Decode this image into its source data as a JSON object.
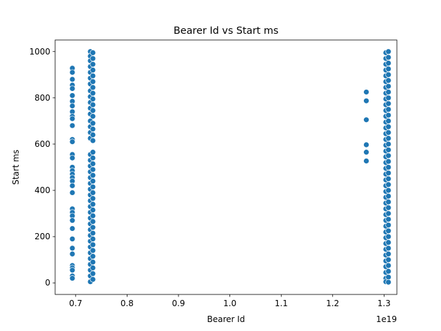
{
  "chart_data": {
    "type": "scatter",
    "title": "Bearer Id vs Start ms",
    "xlabel": "Bearer Id",
    "ylabel": "Start ms",
    "x_offset_text": "1e19",
    "x_scale_exponent": 19,
    "xlim": [
      0.66,
      1.325
    ],
    "ylim": [
      -50,
      1050
    ],
    "x_ticks": [
      0.7,
      0.8,
      0.9,
      1.0,
      1.1,
      1.2,
      1.3
    ],
    "x_tick_labels": [
      "0.7",
      "0.8",
      "0.9",
      "1.0",
      "1.1",
      "1.2",
      "1.3"
    ],
    "y_ticks": [
      0,
      200,
      400,
      600,
      800,
      1000
    ],
    "y_tick_labels": [
      "0",
      "200",
      "400",
      "600",
      "800",
      "1000"
    ],
    "grid": false,
    "legend": "none",
    "marker_color": "#1f77b4",
    "series": [
      {
        "points": [
          {
            "x": 0.6935,
            "y": 928
          },
          {
            "x": 0.6935,
            "y": 910
          },
          {
            "x": 0.6935,
            "y": 880
          },
          {
            "x": 0.6935,
            "y": 855
          },
          {
            "x": 0.6935,
            "y": 840
          },
          {
            "x": 0.6935,
            "y": 810
          },
          {
            "x": 0.6935,
            "y": 785
          },
          {
            "x": 0.6935,
            "y": 765
          },
          {
            "x": 0.6935,
            "y": 740
          },
          {
            "x": 0.6935,
            "y": 720
          },
          {
            "x": 0.6935,
            "y": 710
          },
          {
            "x": 0.6935,
            "y": 680
          },
          {
            "x": 0.6935,
            "y": 620
          },
          {
            "x": 0.6935,
            "y": 610
          },
          {
            "x": 0.6935,
            "y": 555
          },
          {
            "x": 0.6935,
            "y": 540
          },
          {
            "x": 0.6935,
            "y": 500
          },
          {
            "x": 0.6935,
            "y": 485
          },
          {
            "x": 0.6935,
            "y": 470
          },
          {
            "x": 0.6935,
            "y": 455
          },
          {
            "x": 0.6935,
            "y": 440
          },
          {
            "x": 0.6935,
            "y": 420
          },
          {
            "x": 0.6935,
            "y": 390
          },
          {
            "x": 0.6935,
            "y": 320
          },
          {
            "x": 0.6935,
            "y": 305
          },
          {
            "x": 0.6935,
            "y": 290
          },
          {
            "x": 0.6935,
            "y": 270
          },
          {
            "x": 0.6935,
            "y": 235
          },
          {
            "x": 0.6935,
            "y": 190
          },
          {
            "x": 0.6935,
            "y": 150
          },
          {
            "x": 0.6935,
            "y": 125
          },
          {
            "x": 0.6935,
            "y": 75
          },
          {
            "x": 0.6935,
            "y": 65
          },
          {
            "x": 0.6935,
            "y": 55
          },
          {
            "x": 0.6935,
            "y": 30
          },
          {
            "x": 0.6935,
            "y": 20
          },
          {
            "x": 0.7285,
            "y": 1000
          },
          {
            "x": 0.7285,
            "y": 980
          },
          {
            "x": 0.7285,
            "y": 960
          },
          {
            "x": 0.7285,
            "y": 935
          },
          {
            "x": 0.7285,
            "y": 910
          },
          {
            "x": 0.7285,
            "y": 885
          },
          {
            "x": 0.7285,
            "y": 860
          },
          {
            "x": 0.7285,
            "y": 830
          },
          {
            "x": 0.7285,
            "y": 805
          },
          {
            "x": 0.7285,
            "y": 780
          },
          {
            "x": 0.7285,
            "y": 755
          },
          {
            "x": 0.7285,
            "y": 730
          },
          {
            "x": 0.7285,
            "y": 700
          },
          {
            "x": 0.7285,
            "y": 675
          },
          {
            "x": 0.7285,
            "y": 650
          },
          {
            "x": 0.7285,
            "y": 625
          },
          {
            "x": 0.7285,
            "y": 555
          },
          {
            "x": 0.7285,
            "y": 530
          },
          {
            "x": 0.7285,
            "y": 505
          },
          {
            "x": 0.7285,
            "y": 480
          },
          {
            "x": 0.7285,
            "y": 455
          },
          {
            "x": 0.7285,
            "y": 430
          },
          {
            "x": 0.7285,
            "y": 405
          },
          {
            "x": 0.7285,
            "y": 380
          },
          {
            "x": 0.7285,
            "y": 355
          },
          {
            "x": 0.7285,
            "y": 330
          },
          {
            "x": 0.7285,
            "y": 305
          },
          {
            "x": 0.7285,
            "y": 280
          },
          {
            "x": 0.7285,
            "y": 255
          },
          {
            "x": 0.7285,
            "y": 230
          },
          {
            "x": 0.7285,
            "y": 205
          },
          {
            "x": 0.7285,
            "y": 180
          },
          {
            "x": 0.7285,
            "y": 155
          },
          {
            "x": 0.7285,
            "y": 130
          },
          {
            "x": 0.7285,
            "y": 105
          },
          {
            "x": 0.7285,
            "y": 80
          },
          {
            "x": 0.7285,
            "y": 55
          },
          {
            "x": 0.7285,
            "y": 30
          },
          {
            "x": 0.7285,
            "y": 5
          },
          {
            "x": 0.7335,
            "y": 995
          },
          {
            "x": 0.7335,
            "y": 970
          },
          {
            "x": 0.7335,
            "y": 945
          },
          {
            "x": 0.7335,
            "y": 920
          },
          {
            "x": 0.7335,
            "y": 895
          },
          {
            "x": 0.7335,
            "y": 870
          },
          {
            "x": 0.7335,
            "y": 845
          },
          {
            "x": 0.7335,
            "y": 820
          },
          {
            "x": 0.7335,
            "y": 795
          },
          {
            "x": 0.7335,
            "y": 770
          },
          {
            "x": 0.7335,
            "y": 745
          },
          {
            "x": 0.7335,
            "y": 720
          },
          {
            "x": 0.7335,
            "y": 690
          },
          {
            "x": 0.7335,
            "y": 665
          },
          {
            "x": 0.7335,
            "y": 640
          },
          {
            "x": 0.7335,
            "y": 615
          },
          {
            "x": 0.7335,
            "y": 565
          },
          {
            "x": 0.7335,
            "y": 540
          },
          {
            "x": 0.7335,
            "y": 515
          },
          {
            "x": 0.7335,
            "y": 490
          },
          {
            "x": 0.7335,
            "y": 465
          },
          {
            "x": 0.7335,
            "y": 440
          },
          {
            "x": 0.7335,
            "y": 415
          },
          {
            "x": 0.7335,
            "y": 390
          },
          {
            "x": 0.7335,
            "y": 365
          },
          {
            "x": 0.7335,
            "y": 340
          },
          {
            "x": 0.7335,
            "y": 315
          },
          {
            "x": 0.7335,
            "y": 290
          },
          {
            "x": 0.7335,
            "y": 265
          },
          {
            "x": 0.7335,
            "y": 240
          },
          {
            "x": 0.7335,
            "y": 215
          },
          {
            "x": 0.7335,
            "y": 190
          },
          {
            "x": 0.7335,
            "y": 165
          },
          {
            "x": 0.7335,
            "y": 140
          },
          {
            "x": 0.7335,
            "y": 115
          },
          {
            "x": 0.7335,
            "y": 90
          },
          {
            "x": 0.7335,
            "y": 65
          },
          {
            "x": 0.7335,
            "y": 40
          },
          {
            "x": 0.7335,
            "y": 15
          },
          {
            "x": 1.2655,
            "y": 825
          },
          {
            "x": 1.2655,
            "y": 787
          },
          {
            "x": 1.2655,
            "y": 705
          },
          {
            "x": 1.2655,
            "y": 597
          },
          {
            "x": 1.2655,
            "y": 565
          },
          {
            "x": 1.2655,
            "y": 527
          },
          {
            "x": 1.3035,
            "y": 995
          },
          {
            "x": 1.3035,
            "y": 970
          },
          {
            "x": 1.3035,
            "y": 945
          },
          {
            "x": 1.3035,
            "y": 920
          },
          {
            "x": 1.3035,
            "y": 895
          },
          {
            "x": 1.3035,
            "y": 870
          },
          {
            "x": 1.3035,
            "y": 845
          },
          {
            "x": 1.3035,
            "y": 820
          },
          {
            "x": 1.3035,
            "y": 795
          },
          {
            "x": 1.3035,
            "y": 770
          },
          {
            "x": 1.3035,
            "y": 745
          },
          {
            "x": 1.3035,
            "y": 720
          },
          {
            "x": 1.3035,
            "y": 695
          },
          {
            "x": 1.3035,
            "y": 670
          },
          {
            "x": 1.3035,
            "y": 645
          },
          {
            "x": 1.3035,
            "y": 620
          },
          {
            "x": 1.3035,
            "y": 595
          },
          {
            "x": 1.3035,
            "y": 570
          },
          {
            "x": 1.3035,
            "y": 545
          },
          {
            "x": 1.3035,
            "y": 520
          },
          {
            "x": 1.3035,
            "y": 495
          },
          {
            "x": 1.3035,
            "y": 470
          },
          {
            "x": 1.3035,
            "y": 445
          },
          {
            "x": 1.3035,
            "y": 420
          },
          {
            "x": 1.3035,
            "y": 395
          },
          {
            "x": 1.3035,
            "y": 370
          },
          {
            "x": 1.3035,
            "y": 345
          },
          {
            "x": 1.3035,
            "y": 320
          },
          {
            "x": 1.3035,
            "y": 295
          },
          {
            "x": 1.3035,
            "y": 270
          },
          {
            "x": 1.3035,
            "y": 245
          },
          {
            "x": 1.3035,
            "y": 220
          },
          {
            "x": 1.3035,
            "y": 195
          },
          {
            "x": 1.3035,
            "y": 170
          },
          {
            "x": 1.3035,
            "y": 145
          },
          {
            "x": 1.3035,
            "y": 120
          },
          {
            "x": 1.3035,
            "y": 95
          },
          {
            "x": 1.3035,
            "y": 70
          },
          {
            "x": 1.3035,
            "y": 45
          },
          {
            "x": 1.3035,
            "y": 20
          },
          {
            "x": 1.3035,
            "y": 5
          },
          {
            "x": 1.3085,
            "y": 1000
          },
          {
            "x": 1.3085,
            "y": 975
          },
          {
            "x": 1.3085,
            "y": 950
          },
          {
            "x": 1.3085,
            "y": 925
          },
          {
            "x": 1.3085,
            "y": 900
          },
          {
            "x": 1.3085,
            "y": 875
          },
          {
            "x": 1.3085,
            "y": 850
          },
          {
            "x": 1.3085,
            "y": 825
          },
          {
            "x": 1.3085,
            "y": 800
          },
          {
            "x": 1.3085,
            "y": 775
          },
          {
            "x": 1.3085,
            "y": 750
          },
          {
            "x": 1.3085,
            "y": 725
          },
          {
            "x": 1.3085,
            "y": 700
          },
          {
            "x": 1.3085,
            "y": 675
          },
          {
            "x": 1.3085,
            "y": 650
          },
          {
            "x": 1.3085,
            "y": 625
          },
          {
            "x": 1.3085,
            "y": 600
          },
          {
            "x": 1.3085,
            "y": 575
          },
          {
            "x": 1.3085,
            "y": 550
          },
          {
            "x": 1.3085,
            "y": 525
          },
          {
            "x": 1.3085,
            "y": 500
          },
          {
            "x": 1.3085,
            "y": 475
          },
          {
            "x": 1.3085,
            "y": 450
          },
          {
            "x": 1.3085,
            "y": 425
          },
          {
            "x": 1.3085,
            "y": 400
          },
          {
            "x": 1.3085,
            "y": 375
          },
          {
            "x": 1.3085,
            "y": 350
          },
          {
            "x": 1.3085,
            "y": 325
          },
          {
            "x": 1.3085,
            "y": 300
          },
          {
            "x": 1.3085,
            "y": 275
          },
          {
            "x": 1.3085,
            "y": 250
          },
          {
            "x": 1.3085,
            "y": 225
          },
          {
            "x": 1.3085,
            "y": 200
          },
          {
            "x": 1.3085,
            "y": 175
          },
          {
            "x": 1.3085,
            "y": 150
          },
          {
            "x": 1.3085,
            "y": 125
          },
          {
            "x": 1.3085,
            "y": 100
          },
          {
            "x": 1.3085,
            "y": 75
          },
          {
            "x": 1.3085,
            "y": 50
          },
          {
            "x": 1.3085,
            "y": 25
          },
          {
            "x": 1.3085,
            "y": 3
          }
        ]
      }
    ]
  }
}
